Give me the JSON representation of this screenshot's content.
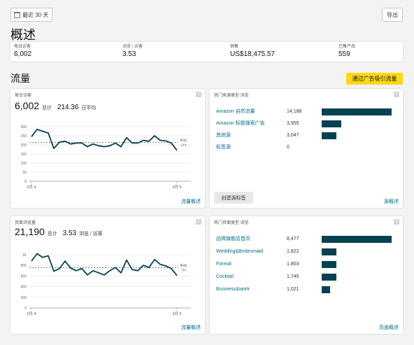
{
  "toolbar": {
    "date_range_label": "最近 30 天",
    "export_label": "导出"
  },
  "overview": {
    "title": "概述",
    "metrics": [
      {
        "label": "每日访客",
        "value": "6,002"
      },
      {
        "label": "浏览 / 访客",
        "value": "3.53"
      },
      {
        "label": "销售",
        "value": "US$18,475.57"
      },
      {
        "label": "已售产品",
        "value": "559"
      }
    ]
  },
  "traffic": {
    "title": "流量",
    "cta_label": "通过广告吸引流量"
  },
  "visitors_card": {
    "title": "每日访客",
    "total": "6,002",
    "total_suffix": "总计",
    "avg": "214.36",
    "avg_suffix": "日平均",
    "link": "流量概述",
    "avg_line_label": "平均",
    "avg_line_value": "214"
  },
  "views_card": {
    "title": "页面浏览量",
    "total": "21,190",
    "total_suffix": "总计",
    "avg": "3.53",
    "avg_suffix": "浏览 / 访客",
    "link": "流量概述",
    "avg_line_label": "平均",
    "avg_line_value": "757"
  },
  "sources_card": {
    "title": "热门来源类型 浏览",
    "button": "创建源标签",
    "link": "源概述",
    "color": "#034250",
    "rows": [
      {
        "label": "Amazon 自然流量",
        "value": "14,188",
        "num": 14188
      },
      {
        "label": "Amazon 标题搜索广告",
        "value": "3,955",
        "num": 3955
      },
      {
        "label": "其他源",
        "value": "3,047",
        "num": 3047
      },
      {
        "label": "标签源",
        "value": "0",
        "num": 0
      }
    ]
  },
  "pages_card": {
    "title": "热门页面类型 浏览",
    "link": "页面概述",
    "color": "#034250",
    "rows": [
      {
        "label": "品牌旗舰店首页",
        "value": "8,477",
        "num": 8477
      },
      {
        "label": "Wedding&Bridesmaid",
        "value": "1,822",
        "num": 1822
      },
      {
        "label": "Formal",
        "value": "1,803",
        "num": 1803
      },
      {
        "label": "Cocktail",
        "value": "1,745",
        "num": 1745
      },
      {
        "label": "Business&work",
        "value": "1,021",
        "num": 1021
      }
    ]
  },
  "chart_data": [
    {
      "type": "line",
      "title": "每日访客",
      "x_ticks": [
        "2月 4",
        "3月 5"
      ],
      "ylim": [
        0,
        300
      ],
      "y_ticks": [
        "0",
        "50",
        "100",
        "150",
        "200",
        "250",
        "300"
      ],
      "series": [
        {
          "values": [
            245,
            285,
            275,
            265,
            180,
            215,
            220,
            205,
            210,
            210,
            190,
            205,
            195,
            190,
            195,
            210,
            190,
            240,
            210,
            210,
            225,
            220,
            250,
            225,
            222,
            210,
            170
          ]
        }
      ],
      "average": 214,
      "line_color": "#034250"
    },
    {
      "type": "line",
      "title": "页面浏览量",
      "x_ticks": [
        "2月 4",
        "3月 5"
      ],
      "ylim": [
        0,
        1000
      ],
      "y_ticks": [
        "0",
        "200",
        "400",
        "600",
        "800",
        "1K"
      ],
      "series": [
        {
          "values": [
            880,
            1020,
            950,
            980,
            690,
            740,
            880,
            750,
            700,
            740,
            620,
            700,
            660,
            620,
            700,
            760,
            660,
            900,
            720,
            700,
            800,
            760,
            910,
            820,
            790,
            740,
            610
          ]
        }
      ],
      "average": 757,
      "line_color": "#034250"
    }
  ]
}
